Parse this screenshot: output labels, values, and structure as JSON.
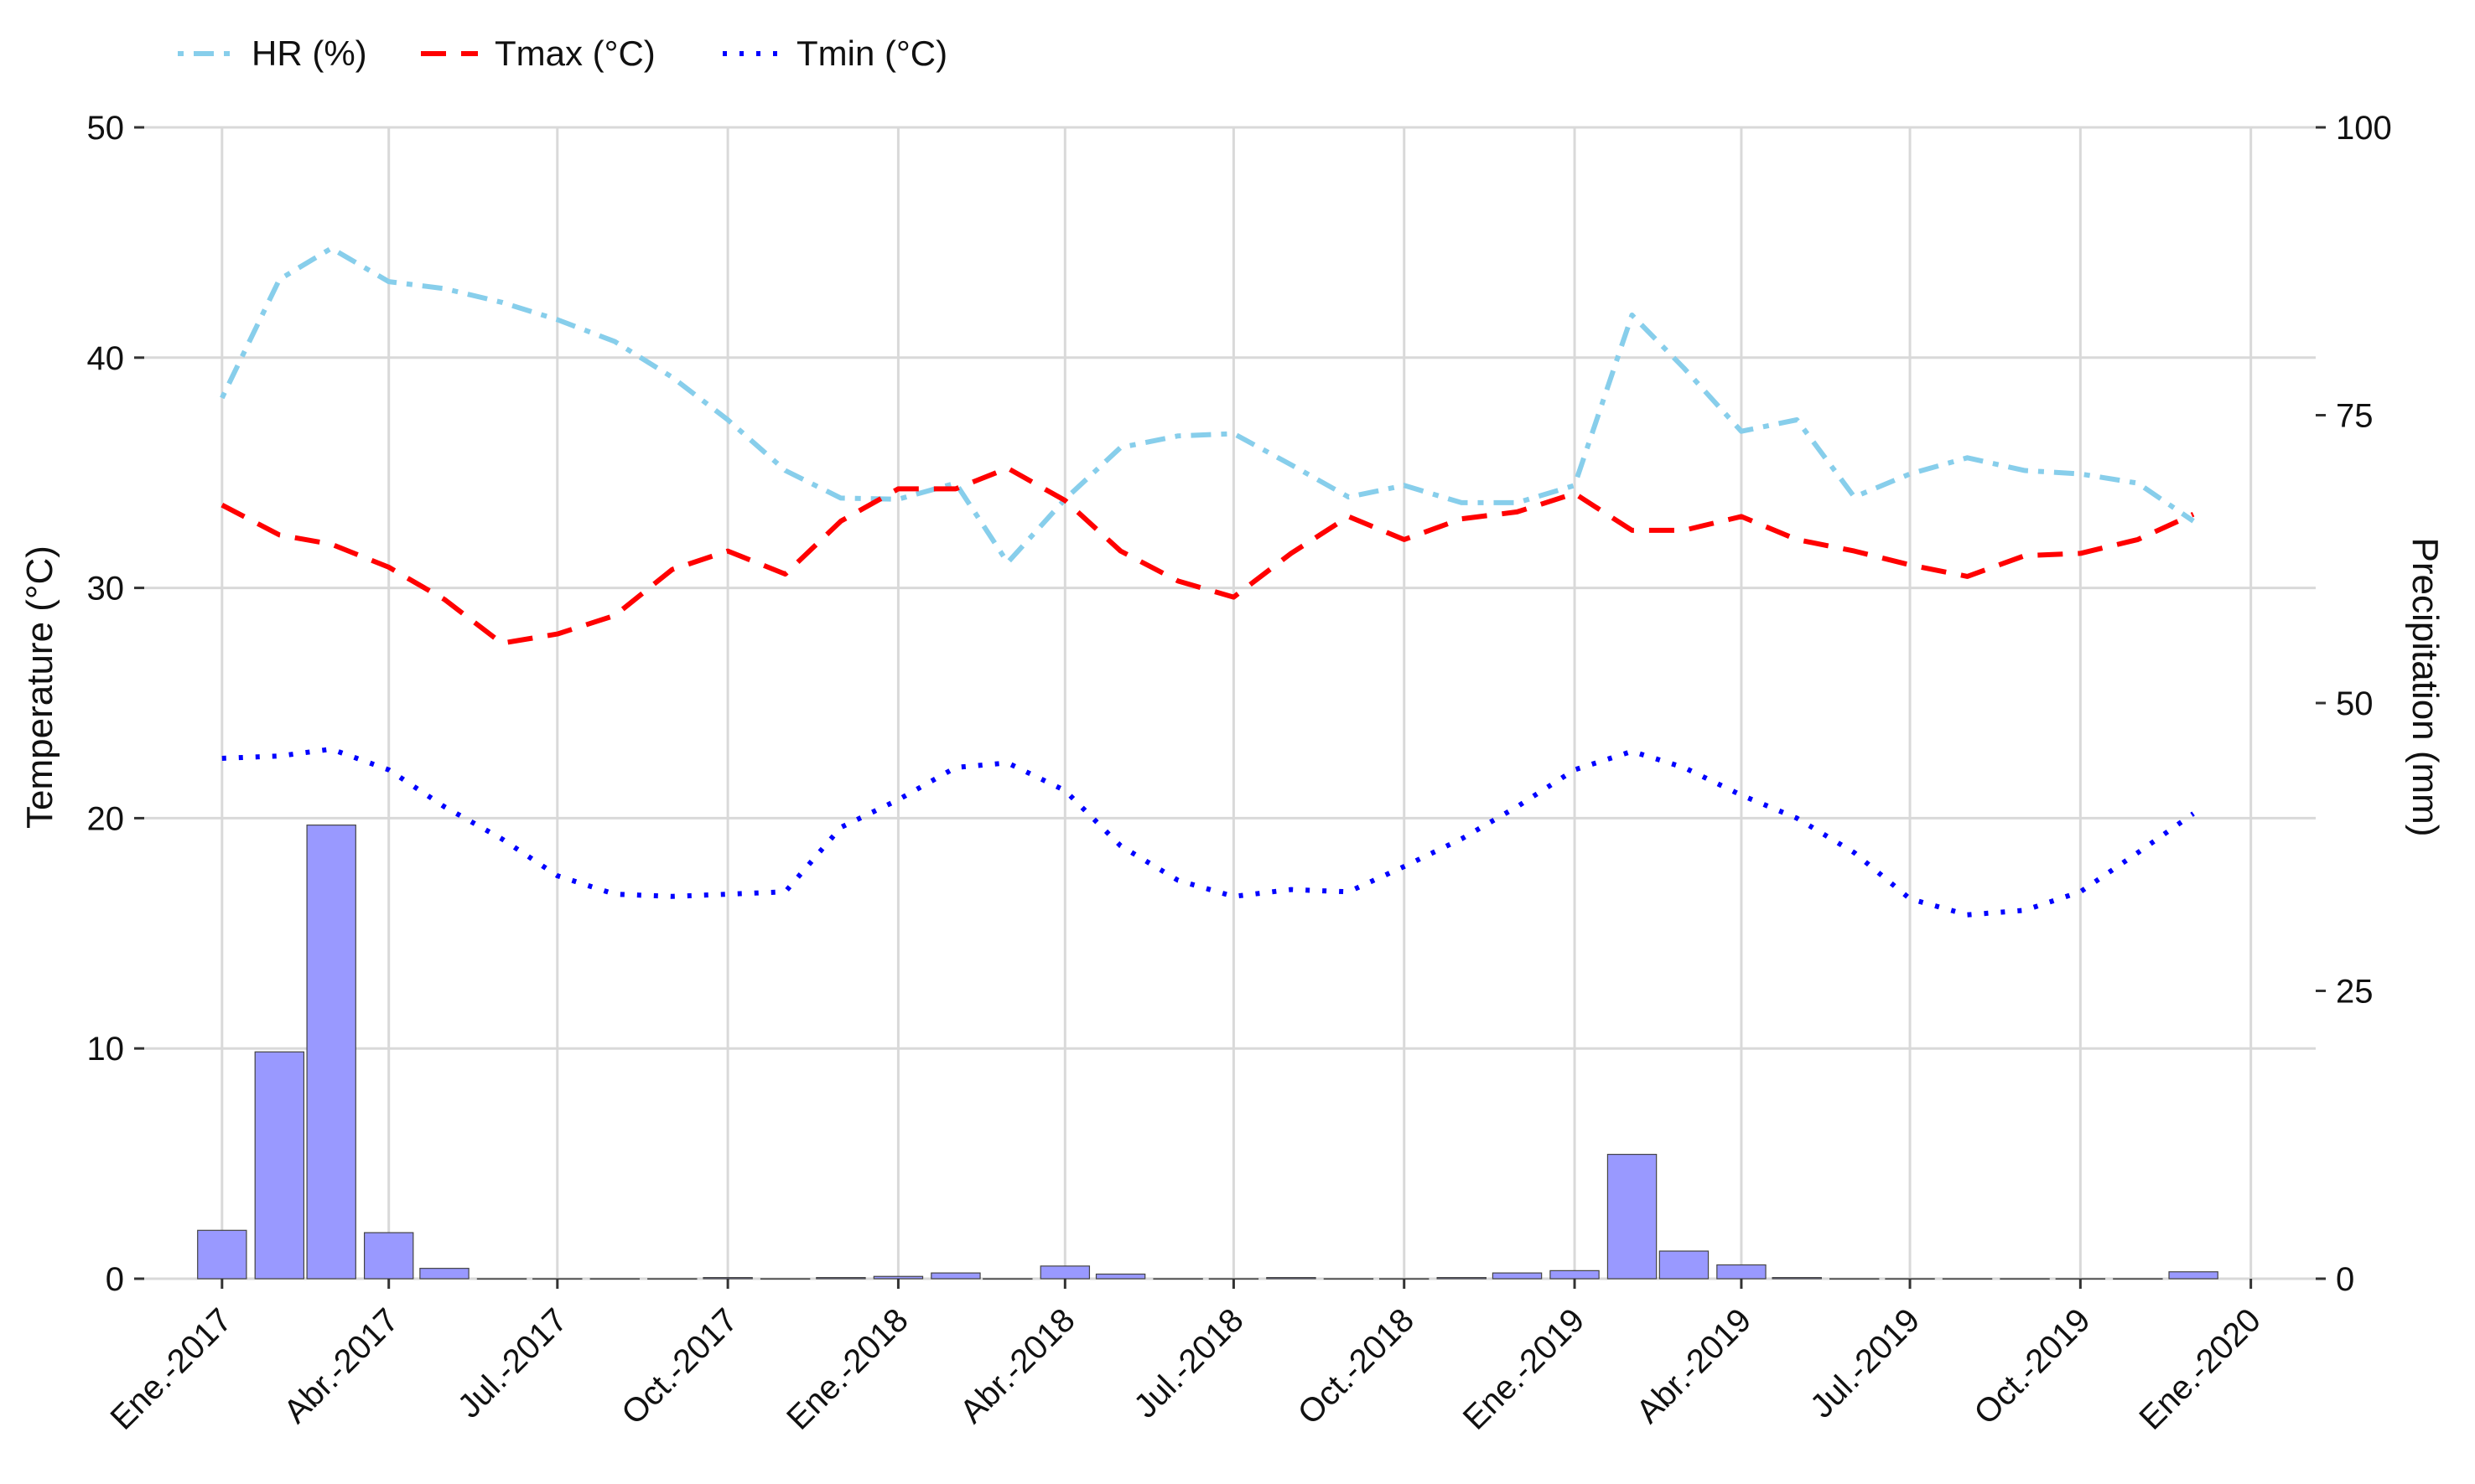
{
  "chart_data": {
    "type": "line",
    "xlabel": "",
    "ylabel": "Temperature (°C)",
    "y2label": "Precipitation (mm)",
    "ylim": [
      0,
      50
    ],
    "y2lim": [
      0,
      100
    ],
    "yticks": [
      0,
      10,
      20,
      30,
      40,
      50
    ],
    "y2ticks": [
      0,
      25,
      50,
      75,
      100
    ],
    "xticks": [
      {
        "date": "2017-01-01",
        "label": "Ene.-2017"
      },
      {
        "date": "2017-04-01",
        "label": "Abr.-2017"
      },
      {
        "date": "2017-07-01",
        "label": "Jul.-2017"
      },
      {
        "date": "2017-10-01",
        "label": "Oct.-2017"
      },
      {
        "date": "2018-01-01",
        "label": "Ene.-2018"
      },
      {
        "date": "2018-04-01",
        "label": "Abr.-2018"
      },
      {
        "date": "2018-07-01",
        "label": "Jul.-2018"
      },
      {
        "date": "2018-10-01",
        "label": "Oct.-2018"
      },
      {
        "date": "2019-01-01",
        "label": "Ene.-2019"
      },
      {
        "date": "2019-04-01",
        "label": "Abr.-2019"
      },
      {
        "date": "2019-07-01",
        "label": "Jul.-2019"
      },
      {
        "date": "2019-10-01",
        "label": "Oct.-2019"
      },
      {
        "date": "2020-01-01",
        "label": "Ene.-2020"
      }
    ],
    "xlim": [
      "2016-11-20",
      "2020-02-05"
    ],
    "dates": [
      "2017-01-01",
      "2017-02-01",
      "2017-03-01",
      "2017-04-01",
      "2017-05-01",
      "2017-06-01",
      "2017-07-01",
      "2017-08-01",
      "2017-09-01",
      "2017-10-01",
      "2017-11-01",
      "2017-12-01",
      "2018-01-01",
      "2018-02-01",
      "2018-03-01",
      "2018-04-01",
      "2018-05-01",
      "2018-06-01",
      "2018-07-01",
      "2018-08-01",
      "2018-09-01",
      "2018-10-01",
      "2018-11-01",
      "2018-12-01",
      "2019-01-01",
      "2019-02-01",
      "2019-03-01",
      "2019-04-01",
      "2019-05-01",
      "2019-06-01",
      "2019-07-01",
      "2019-08-01",
      "2019-09-01",
      "2019-10-01",
      "2019-11-01",
      "2019-12-01"
    ],
    "series": [
      {
        "name": "HR (%)",
        "axis": "right",
        "color": "#87CEEB",
        "dash": "dotdash",
        "values": [
          76.5,
          86.8,
          89.5,
          86.6,
          86,
          84.8,
          83.3,
          81.4,
          78.3,
          74.6,
          70.2,
          67.8,
          67.7,
          69.1,
          62.2,
          67.7,
          72.2,
          73.2,
          73.4,
          70.7,
          67.9,
          68.9,
          67.4,
          67.4,
          68.9,
          83.7,
          79.1,
          73.6,
          74.6,
          67.9,
          69.9,
          71.3,
          70.2,
          69.9,
          69.1,
          65.8
        ]
      },
      {
        "name": "Tmax (°C)",
        "axis": "left",
        "color": "#FF0000",
        "dash": "dashed",
        "values": [
          33.6,
          32.3,
          31.9,
          30.9,
          29.5,
          27.6,
          28,
          28.8,
          30.8,
          31.6,
          30.6,
          32.9,
          34.3,
          34.3,
          35.2,
          33.8,
          31.6,
          30.3,
          29.6,
          31.5,
          33.1,
          32.1,
          33,
          33.3,
          34.1,
          32.5,
          32.5,
          33.1,
          32.1,
          31.6,
          31,
          30.5,
          31.4,
          31.5,
          32.1,
          33.2
        ]
      },
      {
        "name": "Tmin (°C)",
        "axis": "left",
        "color": "#0000FF",
        "dash": "dotted",
        "values": [
          22.6,
          22.7,
          23,
          22.1,
          20.5,
          19.1,
          17.5,
          16.7,
          16.6,
          16.7,
          16.8,
          19.6,
          20.8,
          22.2,
          22.4,
          21.2,
          18.8,
          17.3,
          16.6,
          16.9,
          16.8,
          17.9,
          19.1,
          20.5,
          22.1,
          22.9,
          22.2,
          21,
          20,
          18.5,
          16.5,
          15.8,
          16,
          16.8,
          18.5,
          20.2
        ]
      },
      {
        "name": "Precipitation",
        "axis": "right",
        "type": "bar",
        "color": "#9999FF",
        "values": [
          4.2,
          19.7,
          39.4,
          4,
          0.9,
          0,
          0,
          0,
          0,
          0.1,
          0,
          0.1,
          0.2,
          0.5,
          0,
          1.1,
          0.4,
          0,
          0,
          0.1,
          0,
          0,
          0.1,
          0.5,
          0.7,
          10.8,
          2.4,
          1.2,
          0.1,
          0,
          0,
          0,
          0,
          0,
          0,
          0.6
        ]
      }
    ],
    "legend": {
      "position": "top-left",
      "entries": [
        "HR (%)",
        "Tmax (°C)",
        "Tmin (°C)"
      ]
    },
    "grid": true
  }
}
